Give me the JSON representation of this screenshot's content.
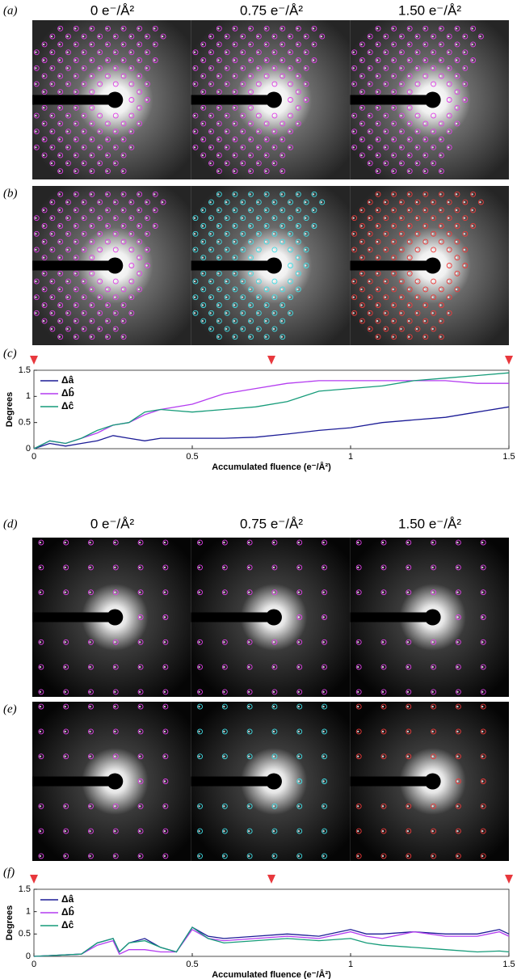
{
  "figure": {
    "panel_labels": [
      "(a)",
      "(b)",
      "(c)",
      "(d)",
      "(e)",
      "(f)"
    ],
    "column_titles_top": [
      "0 e⁻/Å²",
      "0.75 e⁻/Å²",
      "1.50 e⁻/Å²"
    ],
    "column_titles_bottom": [
      "0 e⁻/Å²",
      "0.75 e⁻/Å²",
      "1.50 e⁻/Å²"
    ]
  },
  "chart_data": [
    {
      "type": "line",
      "xlabel": "Accumulated fluence (e⁻/Å²)",
      "ylabel": "Degrees",
      "x": [
        0,
        0.05,
        0.1,
        0.15,
        0.2,
        0.25,
        0.3,
        0.35,
        0.4,
        0.5,
        0.6,
        0.7,
        0.8,
        0.9,
        1.0,
        1.1,
        1.2,
        1.3,
        1.4,
        1.5
      ],
      "series": [
        {
          "name": "Δâ",
          "color": "#1c1c96",
          "values": [
            0,
            0.1,
            0.05,
            0.1,
            0.15,
            0.25,
            0.2,
            0.15,
            0.2,
            0.2,
            0.2,
            0.22,
            0.28,
            0.35,
            0.4,
            0.5,
            0.55,
            0.6,
            0.7,
            0.8
          ]
        },
        {
          "name": "Δb̂",
          "color": "#b43cf0",
          "values": [
            0,
            0.15,
            0.1,
            0.2,
            0.3,
            0.45,
            0.5,
            0.65,
            0.75,
            0.85,
            1.05,
            1.15,
            1.25,
            1.3,
            1.3,
            1.3,
            1.3,
            1.3,
            1.25,
            1.25
          ]
        },
        {
          "name": "Δĉ",
          "color": "#179c7a",
          "values": [
            0,
            0.15,
            0.1,
            0.2,
            0.35,
            0.45,
            0.5,
            0.7,
            0.75,
            0.7,
            0.75,
            0.8,
            0.9,
            1.1,
            1.15,
            1.2,
            1.3,
            1.35,
            1.4,
            1.45
          ]
        }
      ],
      "markers_x": [
        0,
        0.75,
        1.5
      ],
      "marker_color": "#e8383d",
      "xlim": [
        0,
        1.5
      ],
      "xticks": [
        0,
        0.5,
        1,
        1.5
      ],
      "ylim": [
        0,
        1.5
      ],
      "yticks": [
        0,
        0.5,
        1,
        1.5
      ],
      "legend": "upper left"
    },
    {
      "type": "line",
      "xlabel": "Accumulated fluence (e⁻/Å²)",
      "ylabel": "Degrees",
      "x": [
        0,
        0.15,
        0.2,
        0.25,
        0.27,
        0.3,
        0.35,
        0.4,
        0.45,
        0.5,
        0.55,
        0.6,
        0.7,
        0.8,
        0.9,
        1.0,
        1.05,
        1.1,
        1.2,
        1.3,
        1.4,
        1.47,
        1.5
      ],
      "series": [
        {
          "name": "Δâ",
          "color": "#1c1c96",
          "values": [
            0,
            0.05,
            0.3,
            0.4,
            0.1,
            0.3,
            0.4,
            0.2,
            0.1,
            0.65,
            0.45,
            0.4,
            0.45,
            0.5,
            0.45,
            0.6,
            0.5,
            0.5,
            0.55,
            0.5,
            0.5,
            0.6,
            0.5
          ]
        },
        {
          "name": "Δb̂",
          "color": "#b43cf0",
          "values": [
            0,
            0.05,
            0.25,
            0.35,
            0.05,
            0.15,
            0.15,
            0.1,
            0.1,
            0.6,
            0.4,
            0.35,
            0.4,
            0.45,
            0.4,
            0.55,
            0.45,
            0.4,
            0.55,
            0.45,
            0.45,
            0.55,
            0.45
          ]
        },
        {
          "name": "Δĉ",
          "color": "#179c7a",
          "values": [
            0,
            0.05,
            0.3,
            0.4,
            0.1,
            0.3,
            0.35,
            0.2,
            0.1,
            0.65,
            0.4,
            0.3,
            0.35,
            0.4,
            0.35,
            0.4,
            0.3,
            0.25,
            0.2,
            0.15,
            0.1,
            0.12,
            0.1
          ]
        }
      ],
      "markers_x": [
        0,
        0.75,
        1.5
      ],
      "marker_color": "#e8383d",
      "xlim": [
        0,
        1.5
      ],
      "xticks": [
        0,
        0.5,
        1,
        1.5
      ],
      "ylim": [
        0,
        1.5
      ],
      "yticks": [
        0,
        0.5,
        1,
        1.5
      ],
      "legend": "upper left"
    }
  ]
}
